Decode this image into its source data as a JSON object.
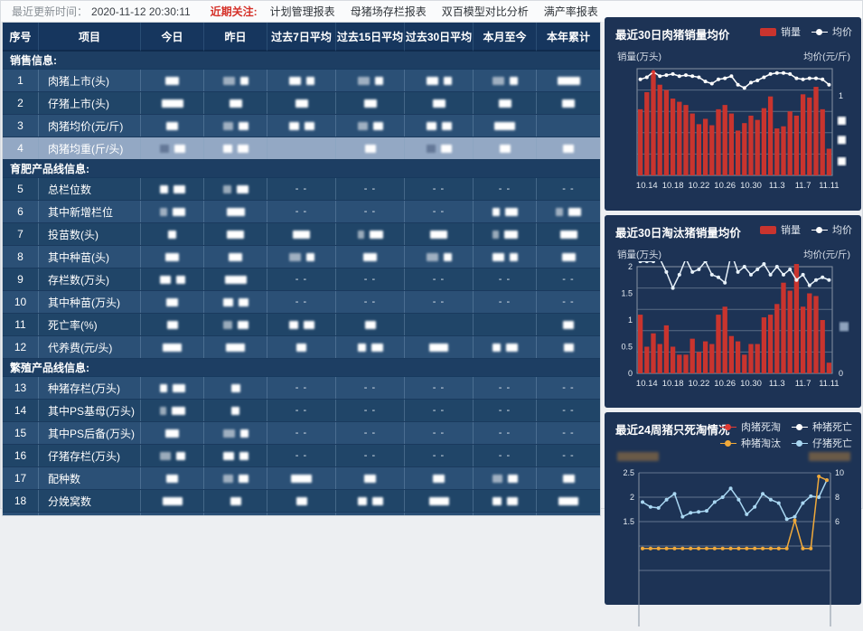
{
  "topbar": {
    "update_label": "最近更新时间：",
    "update_time": "2020-11-12 20:30:11",
    "focus_label": "近期关注:",
    "links": [
      "计划管理报表",
      "母猪场存栏报表",
      "双百模型对比分析",
      "满产率报表"
    ]
  },
  "table": {
    "columns": [
      "序号",
      "项目",
      "今日",
      "昨日",
      "过去7日平均",
      "过去15日平均",
      "过去30日平均",
      "本月至今",
      "本年累计"
    ],
    "dash_text": "- -",
    "sections": [
      {
        "title": "销售信息:",
        "start_parity": 0,
        "rows": [
          {
            "no": "1",
            "name": "肉猪上市(头)",
            "selected": false,
            "cells": [
              "1",
              "2",
              "2",
              "2",
              "2",
              "2",
              "3"
            ]
          },
          {
            "no": "2",
            "name": "仔猪上市(头)",
            "selected": false,
            "cells": [
              "3",
              "1",
              "1",
              "1",
              "1",
              "1",
              "1"
            ]
          },
          {
            "no": "3",
            "name": "肉猪均价(元/斤)",
            "selected": false,
            "cells": [
              "1",
              "2",
              "2",
              "2",
              "2",
              "3",
              ""
            ]
          },
          {
            "no": "4",
            "name": "肉猪均重(斤/头)",
            "selected": true,
            "cells": [
              "2",
              "2",
              "",
              "1",
              "2",
              "1",
              "1"
            ]
          }
        ]
      },
      {
        "title": "育肥产品线信息:",
        "start_parity": 1,
        "rows": [
          {
            "no": "5",
            "name": "总栏位数",
            "selected": false,
            "cells": [
              "2",
              "2",
              "-",
              "-",
              "-",
              "-",
              "-"
            ]
          },
          {
            "no": "6",
            "name": "其中新增栏位",
            "selected": false,
            "cells": [
              "2",
              "3",
              "-",
              "-",
              "-",
              "2",
              "2"
            ]
          },
          {
            "no": "7",
            "name": "投苗数(头)",
            "selected": false,
            "cells": [
              "1",
              "3",
              "3",
              "2",
              "3",
              "2",
              "3"
            ]
          },
          {
            "no": "8",
            "name": "其中种苗(头)",
            "selected": false,
            "cells": [
              "1",
              "1",
              "2",
              "1",
              "2",
              "2",
              "1"
            ]
          },
          {
            "no": "9",
            "name": "存栏数(万头)",
            "selected": false,
            "cells": [
              "2",
              "3",
              "-",
              "-",
              "-",
              "-",
              "-"
            ]
          },
          {
            "no": "10",
            "name": "其中种苗(万头)",
            "selected": false,
            "cells": [
              "1",
              "2",
              "-",
              "-",
              "-",
              "-",
              "-"
            ]
          },
          {
            "no": "11",
            "name": "死亡率(%)",
            "selected": false,
            "cells": [
              "1",
              "2",
              "2",
              "1",
              "",
              "",
              "1"
            ]
          },
          {
            "no": "12",
            "name": "代养费(元/头)",
            "selected": false,
            "cells": [
              "3",
              "3",
              "1",
              "2",
              "3",
              "2",
              "1"
            ]
          }
        ]
      },
      {
        "title": "繁殖产品线信息:",
        "start_parity": 0,
        "rows": [
          {
            "no": "13",
            "name": "种猪存栏(万头)",
            "selected": false,
            "cells": [
              "2",
              "1",
              "-",
              "-",
              "-",
              "-",
              "-"
            ]
          },
          {
            "no": "14",
            "name": "其中PS基母(万头)",
            "selected": false,
            "cells": [
              "2",
              "1",
              "-",
              "-",
              "-",
              "-",
              "-"
            ]
          },
          {
            "no": "15",
            "name": "其中PS后备(万头)",
            "selected": false,
            "cells": [
              "1",
              "2",
              "-",
              "-",
              "-",
              "-",
              "-"
            ]
          },
          {
            "no": "16",
            "name": "仔猪存栏(万头)",
            "selected": false,
            "cells": [
              "2",
              "2",
              "-",
              "-",
              "-",
              "-",
              "-"
            ]
          },
          {
            "no": "17",
            "name": "配种数",
            "selected": false,
            "cells": [
              "1",
              "2",
              "3",
              "1",
              "1",
              "2",
              "1"
            ]
          },
          {
            "no": "18",
            "name": "分娩窝数",
            "selected": false,
            "cells": [
              "3",
              "1",
              "1",
              "2",
              "3",
              "2",
              "3"
            ]
          },
          {
            "no": "19",
            "name": "窝均活仔(头/窝)",
            "selected": false,
            "cells": [
              "2",
              "2",
              "",
              "1",
              "2",
              "",
              "3"
            ]
          }
        ]
      }
    ]
  },
  "chart_data": [
    {
      "type": "bar",
      "title": "最近30日肉猪销量均价",
      "legend": [
        {
          "label": "销量",
          "marker": "bar",
          "color": "#c9342e"
        },
        {
          "label": "均价",
          "marker": "dot",
          "color": "#ffffff"
        }
      ],
      "ylabel_left": "销量(万头)",
      "ylabel_right": "均价(元/斤)",
      "left_ticks_redacted": true,
      "right_ticks": [
        "1"
      ],
      "right_ticks_redacted_count": 3,
      "x_tick_labels": [
        "10.14",
        "10.18",
        "10.22",
        "10.26",
        "10.30",
        "11.3",
        "11.7",
        "11.11"
      ],
      "x_tick_indices": [
        1,
        5,
        9,
        13,
        17,
        21,
        25,
        29
      ],
      "y_max": 100,
      "bar_values": [
        62,
        78,
        97,
        85,
        80,
        72,
        69,
        66,
        58,
        48,
        53,
        47,
        62,
        66,
        58,
        42,
        49,
        56,
        52,
        63,
        74,
        44,
        46,
        60,
        56,
        76,
        73,
        83,
        62,
        25
      ],
      "line_values": [
        90,
        92,
        97,
        93,
        94,
        95,
        93,
        94,
        93,
        92,
        88,
        86,
        90,
        91,
        93,
        85,
        82,
        87,
        89,
        92,
        95,
        96,
        96,
        95,
        91,
        90,
        91,
        91,
        90,
        85
      ],
      "highlight_point_index": 2,
      "bar_color": "#c9342e",
      "line_color": "#ffffff"
    },
    {
      "type": "bar",
      "title": "最近30日淘汰猪销量均价",
      "legend": [
        {
          "label": "销量",
          "marker": "bar",
          "color": "#c9342e"
        },
        {
          "label": "均价",
          "marker": "dot",
          "color": "#ffffff"
        }
      ],
      "ylabel_left": "销量(万头)",
      "ylabel_right": "均价(元/斤)",
      "left_ticks": [
        "2",
        "1.5",
        "1",
        "0.5",
        "0"
      ],
      "right_ticks": [
        "0"
      ],
      "right_ticks_redacted_count": 1,
      "x_tick_labels": [
        "10.14",
        "10.18",
        "10.22",
        "10.26",
        "10.30",
        "11.3",
        "11.7",
        "11.11"
      ],
      "x_tick_indices": [
        1,
        5,
        9,
        13,
        17,
        21,
        25,
        29
      ],
      "y_max": 2,
      "bar_values": [
        1.1,
        0.5,
        0.75,
        0.55,
        0.9,
        0.5,
        0.35,
        0.35,
        0.65,
        0.4,
        0.6,
        0.55,
        1.1,
        1.25,
        0.7,
        0.6,
        0.35,
        0.55,
        0.55,
        1.05,
        1.1,
        1.3,
        1.7,
        1.55,
        2.05,
        1.25,
        1.5,
        1.45,
        1.0,
        0.2
      ],
      "line_values": [
        2.1,
        2.1,
        2.1,
        2.15,
        1.9,
        1.6,
        1.85,
        2.15,
        1.9,
        1.95,
        2.1,
        1.85,
        1.8,
        1.7,
        2.25,
        1.9,
        2.0,
        1.85,
        1.95,
        2.05,
        1.85,
        2.0,
        1.85,
        1.95,
        1.75,
        1.85,
        1.65,
        1.75,
        1.8,
        1.75
      ],
      "bar_color": "#c9342e",
      "line_color": "#e8f2fa"
    },
    {
      "type": "line",
      "title": "最近24周猪只死淘情况",
      "legend": [
        {
          "label": "肉猪死淘",
          "marker": "dot",
          "color": "#e23b34"
        },
        {
          "label": "种猪死亡",
          "marker": "dot",
          "color": "#ffffff"
        },
        {
          "label": "种猪淘汰",
          "marker": "dot",
          "color": "#f0a93a"
        },
        {
          "label": "仔猪死亡",
          "marker": "dot",
          "color": "#a9d7f2"
        }
      ],
      "ylabel_left_redacted": true,
      "ylabel_right_redacted": true,
      "left_ticks": [
        "2.5",
        "2",
        "1.5"
      ],
      "right_ticks": [
        "10",
        "8",
        "6"
      ],
      "left_axis_range_visible": [
        1.5,
        2.5
      ],
      "right_axis_range_visible": [
        6,
        10
      ],
      "series": [
        {
          "name": "仔猪死亡",
          "axis": "left",
          "color": "#a9d7f2",
          "values": [
            1.9,
            1.8,
            1.78,
            1.95,
            2.07,
            1.6,
            1.68,
            1.7,
            1.72,
            1.9,
            2.0,
            2.18,
            1.95,
            1.65,
            1.8,
            2.07,
            1.95,
            1.88,
            1.55,
            1.6,
            1.88,
            2.02,
            2.0,
            2.35
          ]
        },
        {
          "name": "种猪淘汰",
          "axis": "right",
          "color": "#f0a93a",
          "values": [
            3.8,
            3.8,
            3.8,
            3.8,
            3.8,
            3.8,
            3.8,
            3.8,
            3.8,
            3.8,
            3.8,
            3.8,
            3.8,
            3.8,
            3.8,
            3.8,
            3.8,
            3.8,
            3.8,
            6.1,
            3.8,
            3.8,
            9.7,
            9.4
          ]
        }
      ]
    }
  ]
}
